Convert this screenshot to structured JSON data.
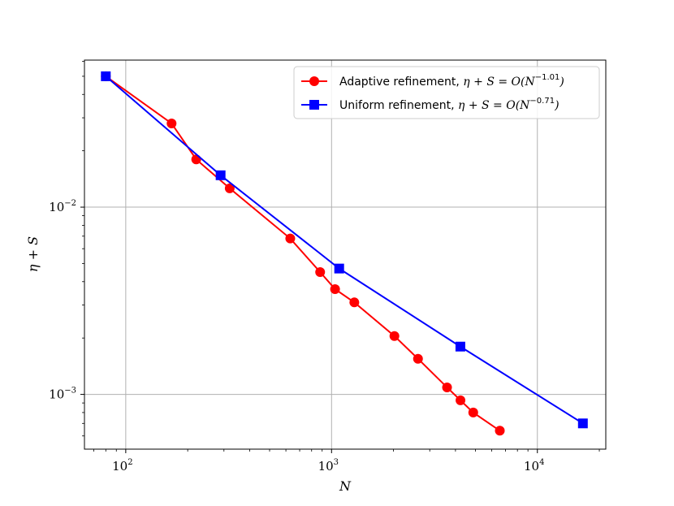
{
  "chart_data": {
    "type": "line",
    "xlabel": "N",
    "ylabel": "η + S",
    "x_scale": "log",
    "y_scale": "log",
    "xlim": [
      63,
      21500
    ],
    "ylim": [
      0.00051,
      0.061
    ],
    "grid": true,
    "legend_position": "top-right",
    "x_ticks": [
      {
        "value": 100,
        "base": "10",
        "exp": "2"
      },
      {
        "value": 1000,
        "base": "10",
        "exp": "3"
      },
      {
        "value": 10000,
        "base": "10",
        "exp": "4"
      }
    ],
    "y_ticks": [
      {
        "value": 0.001,
        "base": "10",
        "exp": "−3"
      },
      {
        "value": 0.01,
        "base": "10",
        "exp": "−2"
      }
    ],
    "series": [
      {
        "name": "Adaptive refinement, η + S = O(N^−1.01)",
        "legend_prefix": "Adaptive refinement, ",
        "legend_expr": "η + S = O(N",
        "legend_exp": "−1.01",
        "legend_suffix": ")",
        "color": "#ff0000",
        "marker": "circle",
        "points": [
          {
            "x": 80,
            "y": 0.05
          },
          {
            "x": 167,
            "y": 0.028
          },
          {
            "x": 220,
            "y": 0.018
          },
          {
            "x": 320,
            "y": 0.0126
          },
          {
            "x": 630,
            "y": 0.0068
          },
          {
            "x": 880,
            "y": 0.0045
          },
          {
            "x": 1040,
            "y": 0.00365
          },
          {
            "x": 1290,
            "y": 0.0031
          },
          {
            "x": 2020,
            "y": 0.00205
          },
          {
            "x": 2630,
            "y": 0.00155
          },
          {
            "x": 3640,
            "y": 0.00109
          },
          {
            "x": 4230,
            "y": 0.00093
          },
          {
            "x": 4880,
            "y": 0.0008
          },
          {
            "x": 6570,
            "y": 0.00064
          }
        ]
      },
      {
        "name": "Uniform refinement, η + S = O(N^−0.71)",
        "legend_prefix": "Uniform refinement, ",
        "legend_expr": "η + S = O(N",
        "legend_exp": "−0.71",
        "legend_suffix": ")",
        "color": "#0000ff",
        "marker": "square",
        "points": [
          {
            "x": 80,
            "y": 0.05
          },
          {
            "x": 289,
            "y": 0.0148
          },
          {
            "x": 1089,
            "y": 0.0047
          },
          {
            "x": 4225,
            "y": 0.0018
          },
          {
            "x": 16641,
            "y": 0.0007
          }
        ]
      }
    ]
  }
}
